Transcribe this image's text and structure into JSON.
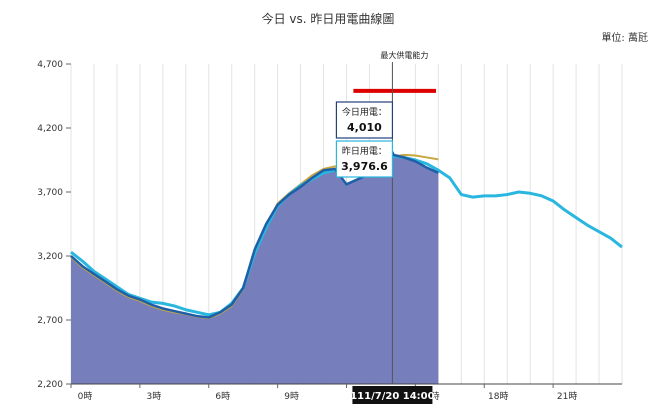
{
  "chart_data": {
    "type": "area",
    "title": "今日 vs. 昨日用電曲線圖",
    "unit_label": "單位: 萬瓩",
    "xlabel": "",
    "ylabel": "",
    "ylim": [
      2200,
      4700
    ],
    "xlim": [
      0,
      24
    ],
    "y_ticks": [
      2200,
      2700,
      3200,
      3700,
      4200,
      4700
    ],
    "y_tick_labels": [
      "2,200",
      "2,700",
      "3,200",
      "3,700",
      "4,200",
      "4,700"
    ],
    "x_ticks": [
      0,
      3,
      6,
      9,
      12,
      15,
      18,
      21
    ],
    "x_tick_labels": [
      "0時",
      "3時",
      "6時",
      "9時",
      "12時",
      "15時",
      "18時",
      "21時"
    ],
    "grid": true,
    "series": [
      {
        "name": "今日用電",
        "color": "#1f5fa8",
        "fill": "#6f77b8",
        "x": [
          0,
          0.5,
          1,
          1.5,
          2,
          2.5,
          3,
          3.5,
          4,
          4.5,
          5,
          5.5,
          6,
          6.5,
          7,
          7.5,
          8,
          8.5,
          9,
          9.5,
          10,
          10.5,
          11,
          11.5,
          12,
          12.5,
          13,
          13.5,
          14,
          14.05,
          14.5,
          15,
          15.5,
          16
        ],
        "values": [
          3200,
          3120,
          3060,
          3000,
          2940,
          2890,
          2860,
          2820,
          2790,
          2770,
          2750,
          2730,
          2720,
          2760,
          2820,
          2950,
          3250,
          3450,
          3600,
          3680,
          3740,
          3810,
          3870,
          3880,
          3760,
          3800,
          3840,
          3860,
          4010,
          3990,
          3970,
          3940,
          3890,
          3850
        ]
      },
      {
        "name": "昨日用電",
        "color": "#c8a640",
        "x": [
          0,
          0.5,
          1,
          1.5,
          2,
          2.5,
          3,
          3.5,
          4,
          4.5,
          5,
          5.5,
          6,
          6.5,
          7,
          7.5,
          8,
          8.5,
          9,
          9.5,
          10,
          10.5,
          11,
          11.5,
          12,
          12.5,
          13,
          13.5,
          14,
          14.5,
          15,
          15.5,
          16
        ],
        "values": [
          3190,
          3110,
          3050,
          2990,
          2930,
          2880,
          2850,
          2810,
          2780,
          2760,
          2745,
          2725,
          2715,
          2750,
          2810,
          2940,
          3240,
          3440,
          3610,
          3690,
          3760,
          3830,
          3880,
          3900,
          3880,
          3890,
          3920,
          3950,
          3976.6,
          3990,
          3985,
          3970,
          3955
        ]
      },
      {
        "name": "預測",
        "color": "#29b6df",
        "x": [
          0,
          0.5,
          1,
          1.5,
          2,
          2.5,
          3,
          3.5,
          4,
          4.5,
          5,
          5.5,
          6,
          6.5,
          7,
          7.5,
          8,
          8.5,
          9,
          9.5,
          10,
          10.5,
          11,
          11.5,
          12,
          12.5,
          13,
          13.5,
          14,
          14.5,
          15,
          15.5,
          16,
          16.5,
          17,
          17.5,
          18,
          18.5,
          19,
          19.5,
          20,
          20.5,
          21,
          21.5,
          22,
          22.5,
          23,
          23.5,
          24
        ],
        "values": [
          3230,
          3160,
          3080,
          3020,
          2960,
          2900,
          2870,
          2840,
          2830,
          2810,
          2780,
          2760,
          2740,
          2760,
          2830,
          2950,
          3220,
          3420,
          3590,
          3680,
          3750,
          3800,
          3850,
          3870,
          3870,
          3890,
          3920,
          3960,
          3980,
          3970,
          3950,
          3920,
          3870,
          3810,
          3680,
          3660,
          3670,
          3670,
          3680,
          3700,
          3690,
          3670,
          3630,
          3560,
          3500,
          3440,
          3390,
          3340,
          3270
        ]
      }
    ],
    "capacity": {
      "label": "最大供電能力",
      "value": 4490,
      "x_start": 12.3,
      "x_end": 15.9,
      "color": "#dd0000"
    },
    "crosshair": {
      "x": 14,
      "label": "111/7/20 14:00"
    },
    "tooltips": [
      {
        "label": "今日用電：",
        "value": "4,010"
      },
      {
        "label": "昨日用電：",
        "value": "3,976.6"
      }
    ]
  }
}
